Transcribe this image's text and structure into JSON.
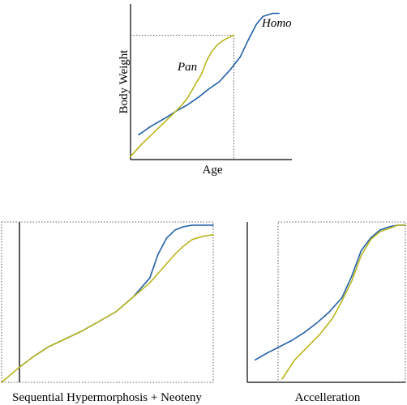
{
  "colors": {
    "homo": "#1f5fa8",
    "pan": "#b9b51c",
    "axis": "#000000",
    "guide": "#333333"
  },
  "chart_data": [
    {
      "type": "line",
      "title": "",
      "xlabel": "Age",
      "ylabel": "Body Weight",
      "xlim": [
        0,
        100
      ],
      "ylim": [
        0,
        100
      ],
      "grid": false,
      "guide_box": {
        "x_max": 64,
        "y_max": 80
      },
      "series": [
        {
          "name": "Homo",
          "x": [
            5,
            8,
            12,
            17,
            22,
            28,
            35,
            42,
            48,
            55,
            62,
            68,
            73,
            78,
            82,
            85,
            88,
            92
          ],
          "y": [
            16,
            18,
            21,
            24,
            27,
            31,
            35,
            40,
            45,
            50,
            58,
            66,
            77,
            87,
            92,
            93,
            94,
            94
          ]
        },
        {
          "name": "Pan",
          "x": [
            0,
            7,
            13,
            19,
            25,
            30,
            35,
            40,
            44,
            47,
            50,
            54,
            58,
            62,
            64
          ],
          "y": [
            2,
            10,
            16,
            22,
            28,
            33,
            39,
            48,
            55,
            63,
            69,
            74,
            77,
            79,
            80
          ]
        }
      ]
    },
    {
      "type": "line",
      "title": "",
      "xlabel": "Sequential Hypermorphosis + Neoteny",
      "ylabel": "",
      "xlim": [
        0,
        100
      ],
      "ylim": [
        0,
        100
      ],
      "grid": false,
      "series": [
        {
          "name": "",
          "x": [
            8,
            15,
            22,
            30,
            38,
            46,
            54,
            62,
            70,
            74,
            78,
            82,
            86,
            90,
            95,
            100
          ],
          "y": [
            9,
            16,
            22,
            27,
            32,
            38,
            44,
            53,
            65,
            80,
            90,
            95,
            97,
            98,
            98,
            98
          ]
        },
        {
          "name": "",
          "x": [
            0,
            8,
            15,
            22,
            30,
            38,
            46,
            54,
            62,
            70,
            74,
            78,
            82,
            86,
            90,
            95,
            100
          ],
          "y": [
            0,
            9,
            16,
            22,
            27,
            32,
            38,
            44,
            53,
            62,
            68,
            74,
            80,
            85,
            89,
            91,
            92
          ]
        }
      ]
    },
    {
      "type": "line",
      "title": "",
      "xlabel": "Accelleration",
      "ylabel": "",
      "xlim": [
        0,
        100
      ],
      "ylim": [
        0,
        100
      ],
      "grid": false,
      "series": [
        {
          "name": "",
          "x": [
            5,
            12,
            20,
            28,
            36,
            44,
            52,
            60,
            66,
            72,
            78,
            84,
            90,
            95,
            100
          ],
          "y": [
            14,
            18,
            22,
            26,
            31,
            37,
            44,
            53,
            66,
            82,
            90,
            95,
            97,
            98,
            98
          ]
        },
        {
          "name": "",
          "x": [
            22,
            30,
            38,
            46,
            54,
            60,
            66,
            72,
            78,
            84,
            90,
            95,
            100
          ],
          "y": [
            2,
            14,
            22,
            30,
            40,
            51,
            63,
            79,
            89,
            94,
            96,
            98,
            98
          ]
        }
      ]
    }
  ]
}
